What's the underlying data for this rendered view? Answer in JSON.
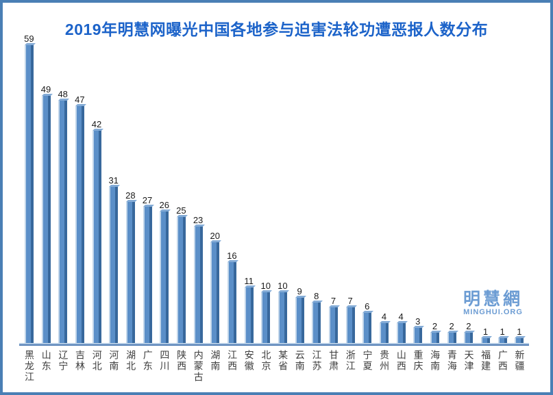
{
  "logo": {
    "cn": "明慧網",
    "en": "MINGHUI.ORG"
  },
  "colors": {
    "title": "#1c63c9",
    "border": "#4a7fb5",
    "bar_face": "#5b8fc8",
    "bar_shade": "#38689c",
    "bar_highlight": "#c2d6ea",
    "bar_top": "#83abd6",
    "floor_band": "#b3cbe4",
    "floor_line": "#4f7cb4",
    "value_label": "#1a1a1a",
    "category_label": "#3d3d3d",
    "logo": "#6c9cd3"
  },
  "chart_data": {
    "type": "bar",
    "title": "2019年明慧网曝光中国各地参与迫害法轮功遭恶报人数分布",
    "categories": [
      "黑龙江",
      "山东",
      "辽宁",
      "吉林",
      "河北",
      "河南",
      "湖北",
      "广东",
      "四川",
      "陕西",
      "内蒙古",
      "湖南",
      "江西",
      "安徽",
      "北京",
      "某省",
      "云南",
      "江苏",
      "甘肃",
      "浙江",
      "宁夏",
      "贵州",
      "山西",
      "重庆",
      "海南",
      "青海",
      "天津",
      "福建",
      "广西",
      "新疆"
    ],
    "values": [
      59,
      49,
      48,
      47,
      42,
      31,
      28,
      27,
      26,
      25,
      23,
      20,
      16,
      11,
      10,
      10,
      9,
      8,
      7,
      7,
      6,
      4,
      4,
      3,
      2,
      2,
      2,
      1,
      1,
      1
    ],
    "xlabel": "",
    "ylabel": "",
    "ylim": [
      0,
      60
    ],
    "grid": false,
    "legend": false,
    "data_labels": true,
    "bar_color_note": "3d-style blue bars"
  }
}
